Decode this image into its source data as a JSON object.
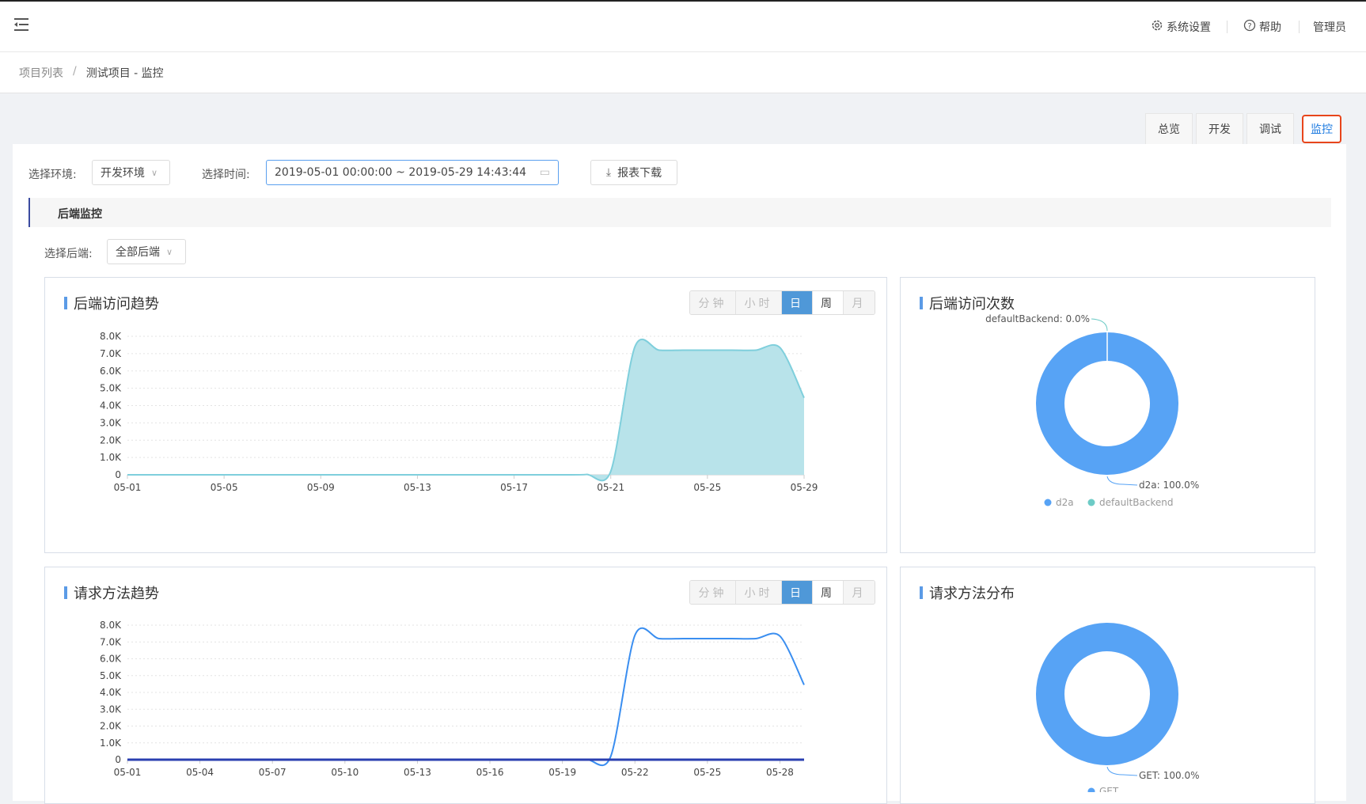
{
  "header": {
    "settings": "系统设置",
    "help": "帮助",
    "user": "管理员"
  },
  "breadcrumb": {
    "root": "项目列表",
    "sep": "/",
    "current": "测试项目 - 监控"
  },
  "tabs": [
    {
      "label": "总览"
    },
    {
      "label": "开发"
    },
    {
      "label": "调试"
    },
    {
      "label": "监控",
      "active": true
    }
  ],
  "filters": {
    "env_label": "选择环境:",
    "env_value": "开发环境",
    "time_label": "选择时间:",
    "time_value": "2019-05-01 00:00:00 ~ 2019-05-29 14:43:44",
    "download": "报表下载"
  },
  "section": {
    "title": "后端监控",
    "backend_label": "选择后端:",
    "backend_value": "全部后端"
  },
  "granularity": [
    "分钟",
    "小时",
    "日",
    "周",
    "月"
  ],
  "granularity_selected": "日",
  "colors": {
    "accent": "#4f98d8",
    "area": "#b8e3ea",
    "area_line": "#7fcfdc",
    "line": "#3a8ef0",
    "zero_line": "#2a3fb0",
    "donut": "#57a3f5",
    "teal": "#6dcbc6",
    "active_tab_border": "#e8451b"
  },
  "chart_data": [
    {
      "type": "area",
      "title": "后端访问趋势",
      "x": [
        "05-01",
        "05-02",
        "05-03",
        "05-04",
        "05-05",
        "05-06",
        "05-07",
        "05-08",
        "05-09",
        "05-10",
        "05-11",
        "05-12",
        "05-13",
        "05-14",
        "05-15",
        "05-16",
        "05-17",
        "05-18",
        "05-19",
        "05-20",
        "05-21",
        "05-22",
        "05-23",
        "05-24",
        "05-25",
        "05-26",
        "05-27",
        "05-28",
        "05-29"
      ],
      "xticks": [
        "05-01",
        "05-05",
        "05-09",
        "05-13",
        "05-17",
        "05-21",
        "05-25",
        "05-29"
      ],
      "yticks": [
        "0",
        "1.0K",
        "2.0K",
        "3.0K",
        "4.0K",
        "5.0K",
        "6.0K",
        "7.0K",
        "8.0K"
      ],
      "ylim": [
        0,
        8000
      ],
      "grid": true,
      "series": [
        {
          "values": [
            0,
            0,
            0,
            0,
            0,
            0,
            0,
            0,
            0,
            0,
            0,
            0,
            0,
            0,
            0,
            0,
            0,
            0,
            0,
            20,
            200,
            7400,
            7200,
            7200,
            7200,
            7200,
            7200,
            7350,
            4450
          ]
        }
      ]
    },
    {
      "type": "pie",
      "title": "后端访问次数",
      "donut": true,
      "legend": "bottom",
      "slices": [
        {
          "name": "d2a",
          "value": 100.0,
          "label": "d2a: 100.0%"
        },
        {
          "name": "defaultBackend",
          "value": 0.0,
          "label": "defaultBackend: 0.0%"
        }
      ]
    },
    {
      "type": "line",
      "title": "请求方法趋势",
      "x": [
        "05-01",
        "05-02",
        "05-03",
        "05-04",
        "05-05",
        "05-06",
        "05-07",
        "05-08",
        "05-09",
        "05-10",
        "05-11",
        "05-12",
        "05-13",
        "05-14",
        "05-15",
        "05-16",
        "05-17",
        "05-18",
        "05-19",
        "05-20",
        "05-21",
        "05-22",
        "05-23",
        "05-24",
        "05-25",
        "05-26",
        "05-27",
        "05-28",
        "05-29"
      ],
      "xticks": [
        "05-01",
        "05-04",
        "05-07",
        "05-10",
        "05-13",
        "05-16",
        "05-19",
        "05-22",
        "05-25",
        "05-28"
      ],
      "yticks": [
        "0",
        "1.0K",
        "2.0K",
        "3.0K",
        "4.0K",
        "5.0K",
        "6.0K",
        "7.0K",
        "8.0K"
      ],
      "ylim": [
        0,
        8000
      ],
      "grid": true,
      "series": [
        {
          "values": [
            0,
            0,
            0,
            0,
            0,
            0,
            0,
            0,
            0,
            0,
            0,
            0,
            0,
            0,
            0,
            0,
            0,
            0,
            0,
            20,
            200,
            7400,
            7200,
            7200,
            7200,
            7200,
            7200,
            7350,
            4450
          ]
        },
        {
          "values": [
            0,
            0,
            0,
            0,
            0,
            0,
            0,
            0,
            0,
            0,
            0,
            0,
            0,
            0,
            0,
            0,
            0,
            0,
            0,
            0,
            0,
            0,
            0,
            0,
            0,
            0,
            0,
            0,
            0
          ]
        }
      ]
    },
    {
      "type": "pie",
      "title": "请求方法分布",
      "donut": true,
      "legend": "bottom",
      "slices": [
        {
          "name": "GET",
          "value": 100.0,
          "label": "GET: 100.0%"
        }
      ]
    }
  ]
}
